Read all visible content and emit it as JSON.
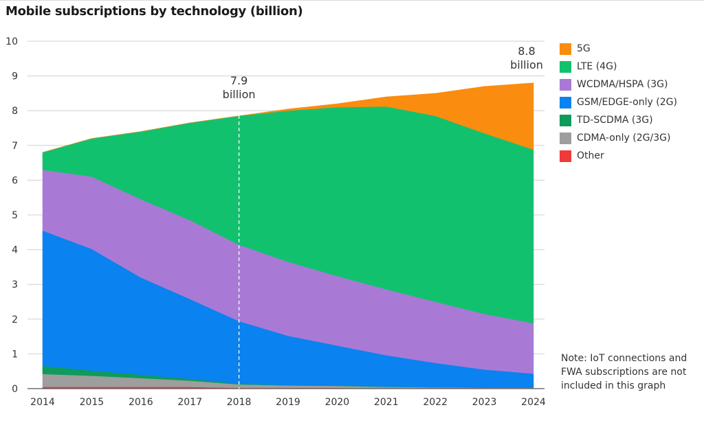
{
  "chart_data": {
    "type": "area",
    "stacked": true,
    "title": "Mobile subscriptions by technology (billion)",
    "xlabel": "",
    "ylabel": "",
    "x": [
      "2014",
      "2015",
      "2016",
      "2017",
      "2018",
      "2019",
      "2020",
      "2021",
      "2022",
      "2023",
      "2024"
    ],
    "ylim": [
      0,
      10
    ],
    "yticks": [
      "0",
      "1",
      "2",
      "3",
      "4",
      "5",
      "6",
      "7",
      "8",
      "9",
      "10"
    ],
    "grid": true,
    "legend_position": "right",
    "series": [
      {
        "name": "Other",
        "color": "#f03a3a",
        "values": [
          0.05,
          0.05,
          0.05,
          0.05,
          0.02,
          0.02,
          0.02,
          0.01,
          0.01,
          0.01,
          0.01
        ]
      },
      {
        "name": "CDMA-only (2G/3G)",
        "color": "#9e9e9e",
        "values": [
          0.37,
          0.32,
          0.25,
          0.18,
          0.1,
          0.07,
          0.06,
          0.04,
          0.03,
          0.02,
          0.02
        ]
      },
      {
        "name": "TD-SCDMA (3G)",
        "color": "#0e9b5b",
        "values": [
          0.23,
          0.15,
          0.1,
          0.05,
          0.02,
          0.01,
          0.01,
          0.01,
          0.0,
          0.0,
          0.0
        ]
      },
      {
        "name": "GSM/EDGE-only (2G)",
        "color": "#0a82ef",
        "values": [
          3.9,
          3.5,
          2.8,
          2.3,
          1.8,
          1.42,
          1.15,
          0.9,
          0.7,
          0.52,
          0.4
        ]
      },
      {
        "name": "WCDMA/HSPA (3G)",
        "color": "#a87ad5",
        "values": [
          1.75,
          2.08,
          2.25,
          2.27,
          2.2,
          2.13,
          2.0,
          1.9,
          1.76,
          1.6,
          1.45
        ]
      },
      {
        "name": "LTE (4G)",
        "color": "#12c16e",
        "values": [
          0.5,
          1.1,
          1.95,
          2.8,
          3.71,
          4.35,
          4.86,
          5.26,
          5.35,
          5.2,
          5.0
        ]
      },
      {
        "name": "5G",
        "color": "#fa8c10",
        "values": [
          0.0,
          0.0,
          0.0,
          0.0,
          0.0,
          0.05,
          0.1,
          0.28,
          0.65,
          1.35,
          1.92
        ]
      }
    ],
    "legend_order": [
      "5G",
      "LTE (4G)",
      "WCDMA/HSPA (3G)",
      "GSM/EDGE-only (2G)",
      "TD-SCDMA (3G)",
      "CDMA-only (2G/3G)",
      "Other"
    ],
    "annotations": [
      {
        "year": "2018",
        "value": 7.9,
        "line1": "7.9",
        "line2": "billion"
      },
      {
        "year": "2024",
        "value": 8.8,
        "line1": "8.8",
        "line2": "billion"
      }
    ],
    "marker_line_year": "2018"
  },
  "note": "Note: IoT connections and FWA subscriptions are not included in this graph"
}
